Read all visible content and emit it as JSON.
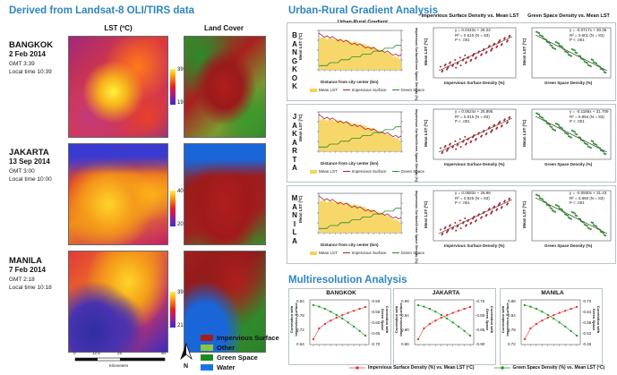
{
  "left": {
    "title": "Derived from Landsat-8 OLI/TIRS data",
    "lst_header": "LST (ºC)",
    "landcover_header": "Land Cover",
    "cities": [
      {
        "name": "BANGKOK",
        "date": "2 Feb 2014",
        "gmt": "GMT 3:39",
        "local": "Local time 10:39",
        "cbar_max": "39.3",
        "cbar_min": "19.6"
      },
      {
        "name": "JAKARTA",
        "date": "13 Sep 2014",
        "gmt": "GMT 3:00",
        "local": "Local time 10:00",
        "cbar_max": "40.1",
        "cbar_min": "20.7"
      },
      {
        "name": "MANILA",
        "date": "7 Feb 2014",
        "gmt": "GMT 2:18",
        "local": "Local time 10:18",
        "cbar_max": "39.4",
        "cbar_min": "21.9"
      }
    ],
    "scale_ticks": [
      "0",
      "12.5",
      "25",
      "50"
    ],
    "scale_unit": "Kilometers",
    "north": "N",
    "legend": [
      {
        "label": "Impervious Surface",
        "color": "#a61c1c"
      },
      {
        "label": "Other",
        "color": "#8cc63f"
      },
      {
        "label": "Green Space",
        "color": "#1e8a1e"
      },
      {
        "label": "Water",
        "color": "#1a73e8"
      }
    ]
  },
  "urg": {
    "title": "Urban-Rural Gradient Analysis",
    "col_gradient": "Urban-Rural Gradient",
    "col_imp": "Impervious Surface Density vs. Mean LST",
    "col_green": "Green Space Density vs. Mean LST",
    "xlabel_dist": "Distance from city center (km)",
    "xlabel_imp": "Impervious Surface Density (%)",
    "xlabel_green": "Green Space Density (%)",
    "ylabel_lst": "Mean LST (ºC)",
    "ylabel_density": "Impervious Surface/Green Space Density (%)",
    "legend": [
      "Mean LST",
      "Impervious Surface",
      "Green Space"
    ],
    "rows": [
      {
        "city_letters": [
          "B",
          "A",
          "N",
          "G",
          "K",
          "O",
          "K"
        ],
        "imp_eq": [
          "y = 0.0443x + 26.22",
          "R² = 0.615 (N = 83)",
          "P < .001"
        ],
        "green_eq": [
          "y = -0.0717x + 30.36",
          "R² = 0.601 (N = 83)",
          "P < .001"
        ]
      },
      {
        "city_letters": [
          "J",
          "A",
          "K",
          "A",
          "R",
          "T",
          "A"
        ],
        "imp_eq": [
          "y = 0.0624x + 25.895",
          "R² = 0.915 (N = 83)",
          "P < .001"
        ],
        "green_eq": [
          "y = -0.1186x + 31.709",
          "R² = 0.894 (N = 83)",
          "P < .001"
        ]
      },
      {
        "city_letters": [
          "M",
          "A",
          "N",
          "I",
          "L",
          "A"
        ],
        "imp_eq": [
          "y = 0.0583x + 26.96",
          "R² = 0.825 (N = 83)",
          "P < .001"
        ],
        "green_eq": [
          "y = -0.0930x + 31.43",
          "R² = 0.860 (N = 83)",
          "P < .001"
        ]
      }
    ]
  },
  "mr": {
    "title": "Multiresolution Analysis",
    "ylabel_left": "Correlation with Impervious Surface",
    "ylabel_right": "Correlation with Green Space",
    "panels": [
      {
        "city": "BANGKOK",
        "left_ticks": [
          "0.84",
          "0.78",
          "0.72",
          "0.64"
        ],
        "right_ticks": [
          "-0.50",
          "-0.55",
          "-0.60",
          "-0.65",
          "-0.70"
        ]
      },
      {
        "city": "JAKARTA",
        "left_ticks": [
          "0.98",
          "0.94",
          "0.90",
          "0.86"
        ],
        "right_ticks": [
          "-0.75",
          "-0.80",
          "-0.85",
          "-0.90"
        ]
      },
      {
        "city": "MANILA",
        "left_ticks": [
          "0.88",
          "0.84",
          "0.78",
          "0.72"
        ],
        "right_ticks": [
          "-0.70",
          "-0.64",
          "-0.58",
          "-0.52",
          "-0.46"
        ]
      }
    ],
    "legend": [
      "Impervious Surface Density (%) vs. Mean LST (ºC)",
      "Green Space Density (%) vs. Mean LST (ºC)"
    ]
  }
}
